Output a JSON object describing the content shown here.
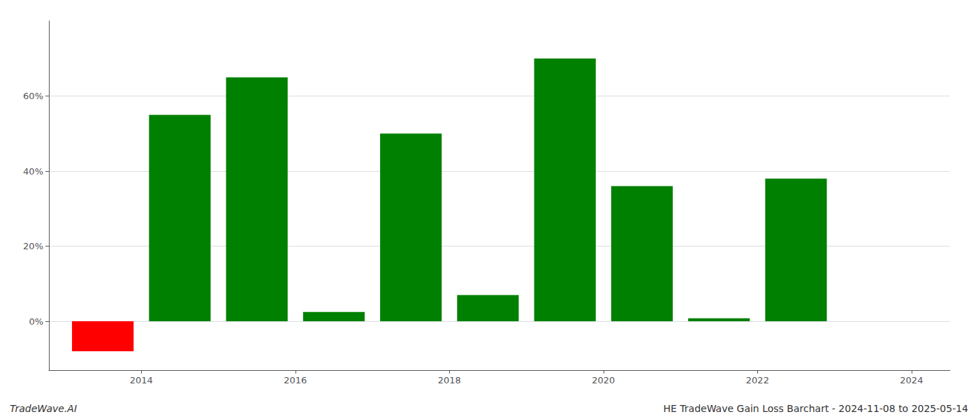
{
  "chart_data": {
    "type": "bar",
    "x": [
      2014,
      2015,
      2016,
      2017,
      2018,
      2019,
      2020,
      2021,
      2022,
      2023
    ],
    "values": [
      -0.08,
      0.55,
      0.65,
      0.025,
      0.5,
      0.07,
      0.7,
      0.36,
      0.008,
      0.38
    ],
    "colors": [
      "#ff0000",
      "#008000",
      "#008000",
      "#008000",
      "#008000",
      "#008000",
      "#008000",
      "#008000",
      "#008000",
      "#008000"
    ],
    "xlim": [
      2013.3,
      2025.0
    ],
    "xticks": [
      {
        "value": 2014.5,
        "label": "2014"
      },
      {
        "value": 2016.5,
        "label": "2016"
      },
      {
        "value": 2018.5,
        "label": "2018"
      },
      {
        "value": 2020.5,
        "label": "2020"
      },
      {
        "value": 2022.5,
        "label": "2022"
      },
      {
        "value": 2024.5,
        "label": "2024"
      }
    ],
    "ylim": [
      -0.13,
      0.8
    ],
    "yticks": [
      {
        "value": 0.0,
        "label": "0%"
      },
      {
        "value": 0.2,
        "label": "20%"
      },
      {
        "value": 0.4,
        "label": "40%"
      },
      {
        "value": 0.6,
        "label": "60%"
      }
    ],
    "grid": true,
    "annotations": [
      "TradeWave.AI",
      "HE TradeWave Gain Loss Barchart - 2024-11-08 to 2025-05-14"
    ]
  }
}
